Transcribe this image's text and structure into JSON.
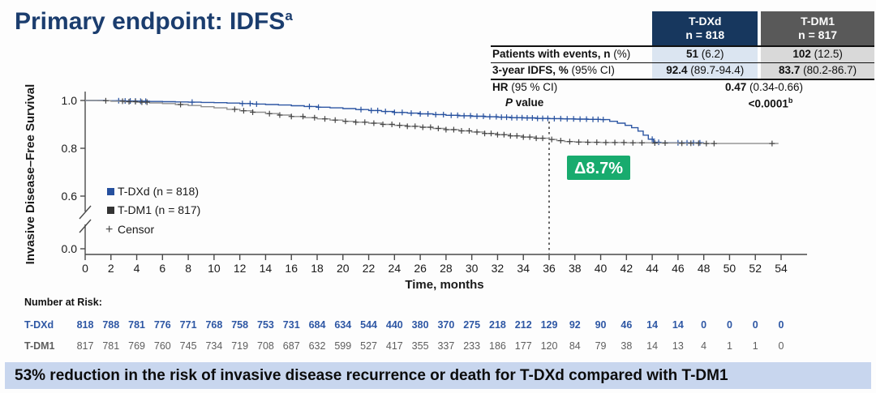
{
  "title": {
    "text": "Primary endpoint: IDFS",
    "superscript": "a"
  },
  "stats_table": {
    "columns": [
      {
        "name": "T-DXd",
        "n": "n = 818",
        "header_color": "#17375e"
      },
      {
        "name": "T-DM1",
        "n": "n = 817",
        "header_color": "#595959"
      }
    ],
    "rows": [
      {
        "label_bold": "Patients with events, n",
        "label_rest": " (%)",
        "tdxd_bold": "51",
        "tdxd_rest": " (6.2)",
        "tdm1_bold": "102",
        "tdm1_rest": " (12.5)"
      },
      {
        "label_bold": "3-year IDFS, %",
        "label_rest": " (95% CI)",
        "tdxd_bold": "92.4",
        "tdxd_rest": " (89.7-94.4)",
        "tdm1_bold": "83.7",
        "tdm1_rest": " (80.2-86.7)"
      }
    ],
    "hr_row": {
      "label_bold": "HR",
      "label_rest": " (95 % CI)",
      "value_bold": "0.47",
      "value_rest": " (0.34-0.66)"
    },
    "p_row": {
      "label_italic": "P",
      "label_rest": " value",
      "value_bold": "<0.0001",
      "superscript": "b"
    }
  },
  "chart_data": {
    "type": "line",
    "subtype": "kaplan-meier-step",
    "xlabel": "Time, months",
    "ylabel": "Invasive Disease–Free Survival",
    "xlim": [
      0,
      54
    ],
    "x_ticks": [
      0,
      2,
      4,
      6,
      8,
      10,
      12,
      14,
      16,
      18,
      20,
      22,
      24,
      26,
      28,
      30,
      32,
      34,
      36,
      38,
      40,
      42,
      44,
      46,
      48,
      50,
      52,
      54
    ],
    "y_ticks": [
      "1.0",
      "0.8",
      "0.6",
      "0.0"
    ],
    "y_axis_break_between": [
      "0.6",
      "0.0"
    ],
    "grid": false,
    "legend_position": "inside-left",
    "reference_line_month": 36,
    "annotation": {
      "text": "Δ8.7%",
      "color": "#18ab6e",
      "text_color": "#ffffff"
    },
    "series": [
      {
        "name": "T-DXd (n = 818)",
        "line_color": "#2e57a4",
        "marker_color": "#26509e",
        "points": [
          [
            0,
            1.0
          ],
          [
            1.5,
            0.999
          ],
          [
            3,
            0.998
          ],
          [
            4,
            0.997
          ],
          [
            5,
            0.996
          ],
          [
            6,
            0.995
          ],
          [
            7,
            0.994
          ],
          [
            8,
            0.993
          ],
          [
            9,
            0.992
          ],
          [
            10,
            0.991
          ],
          [
            11,
            0.989
          ],
          [
            12,
            0.987
          ],
          [
            13,
            0.985
          ],
          [
            14,
            0.983
          ],
          [
            15,
            0.981
          ],
          [
            16,
            0.978
          ],
          [
            17,
            0.975
          ],
          [
            18,
            0.972
          ],
          [
            19,
            0.969
          ],
          [
            20,
            0.966
          ],
          [
            21,
            0.962
          ],
          [
            22,
            0.958
          ],
          [
            23,
            0.954
          ],
          [
            24,
            0.95
          ],
          [
            25,
            0.947
          ],
          [
            26,
            0.944
          ],
          [
            27,
            0.941
          ],
          [
            28,
            0.938
          ],
          [
            29,
            0.936
          ],
          [
            30,
            0.934
          ],
          [
            31,
            0.932
          ],
          [
            32,
            0.93
          ],
          [
            33,
            0.928
          ],
          [
            34,
            0.927
          ],
          [
            35,
            0.925
          ],
          [
            36,
            0.924
          ],
          [
            37,
            0.923
          ],
          [
            38,
            0.922
          ],
          [
            39,
            0.921
          ],
          [
            40,
            0.92
          ],
          [
            40.7,
            0.913
          ],
          [
            41.3,
            0.905
          ],
          [
            41.9,
            0.896
          ],
          [
            42.4,
            0.886
          ],
          [
            42.9,
            0.872
          ],
          [
            43.3,
            0.855
          ],
          [
            43.7,
            0.838
          ],
          [
            44.1,
            0.825
          ],
          [
            44.6,
            0.823
          ],
          [
            48,
            0.823
          ]
        ],
        "censor_months": [
          2.6,
          3.1,
          3.5,
          3.9,
          4.3,
          4.7,
          8.3,
          12.2,
          12.8,
          13.3,
          17.4,
          18.1,
          21.4,
          22.2,
          22.7,
          23.3,
          24.0,
          24.6,
          25.3,
          26.0,
          26.6,
          27.2,
          27.8,
          28.4,
          28.9,
          29.4,
          29.9,
          30.4,
          30.9,
          31.4,
          31.9,
          32.3,
          32.7,
          33.1,
          33.5,
          33.9,
          34.3,
          34.7,
          35.1,
          35.5,
          35.9,
          36.4,
          36.9,
          37.4,
          37.9,
          38.4,
          38.9,
          39.4,
          39.8,
          40.2,
          44.0,
          44.5,
          46.0,
          46.7,
          47.2,
          47.7
        ]
      },
      {
        "name": "T-DM1 (n = 817)",
        "line_color": "#8f8f8f",
        "marker_color": "#454545",
        "points": [
          [
            0,
            1.0
          ],
          [
            1,
            0.999
          ],
          [
            2,
            0.997
          ],
          [
            3,
            0.995
          ],
          [
            4,
            0.993
          ],
          [
            5,
            0.99
          ],
          [
            6,
            0.987
          ],
          [
            7,
            0.983
          ],
          [
            8,
            0.979
          ],
          [
            9,
            0.974
          ],
          [
            10,
            0.969
          ],
          [
            11,
            0.963
          ],
          [
            12,
            0.957
          ],
          [
            13,
            0.951
          ],
          [
            14,
            0.945
          ],
          [
            15,
            0.939
          ],
          [
            16,
            0.933
          ],
          [
            17,
            0.928
          ],
          [
            18,
            0.923
          ],
          [
            19,
            0.918
          ],
          [
            20,
            0.913
          ],
          [
            21,
            0.909
          ],
          [
            22,
            0.905
          ],
          [
            23,
            0.9
          ],
          [
            24,
            0.896
          ],
          [
            25,
            0.892
          ],
          [
            26,
            0.888
          ],
          [
            27,
            0.883
          ],
          [
            28,
            0.878
          ],
          [
            29,
            0.873
          ],
          [
            30,
            0.868
          ],
          [
            31,
            0.862
          ],
          [
            32,
            0.857
          ],
          [
            33,
            0.852
          ],
          [
            34,
            0.847
          ],
          [
            35,
            0.842
          ],
          [
            36,
            0.837
          ],
          [
            36.6,
            0.832
          ],
          [
            37.2,
            0.828
          ],
          [
            38,
            0.826
          ],
          [
            39,
            0.825
          ],
          [
            40,
            0.824
          ],
          [
            42,
            0.823
          ],
          [
            44,
            0.822
          ],
          [
            46,
            0.821
          ],
          [
            48,
            0.82
          ],
          [
            53.8,
            0.82
          ]
        ],
        "censor_months": [
          1.6,
          2.9,
          3.4,
          3.9,
          4.4,
          4.8,
          7.4,
          11.6,
          12.3,
          13.0,
          14.3,
          15.1,
          16.0,
          16.9,
          17.8,
          18.6,
          19.4,
          20.2,
          21.0,
          21.7,
          22.4,
          23.1,
          23.8,
          24.4,
          25.0,
          25.6,
          26.2,
          26.8,
          27.4,
          28.0,
          28.6,
          29.2,
          29.8,
          30.4,
          31.0,
          31.5,
          32.0,
          32.5,
          33.0,
          33.5,
          34.0,
          34.5,
          35.0,
          35.5,
          36.2,
          36.9,
          37.6,
          38.3,
          39.0,
          39.7,
          40.4,
          41.1,
          41.8,
          42.5,
          43.2,
          44.2,
          45.0,
          46.3,
          47.0,
          47.6,
          48.2,
          48.8,
          53.3
        ]
      }
    ],
    "legend": [
      {
        "marker": "square",
        "color": "#26509e",
        "label": "T-DXd (n = 818)"
      },
      {
        "marker": "square",
        "color": "#333333",
        "label": "T-DM1 (n = 817)"
      },
      {
        "marker": "plus",
        "color": "#444444",
        "label": "Censor",
        "prefix": "+"
      }
    ]
  },
  "risk_table": {
    "heading": "Number at Risk:",
    "months": [
      0,
      2,
      4,
      6,
      8,
      10,
      12,
      14,
      16,
      18,
      20,
      22,
      24,
      26,
      28,
      30,
      32,
      34,
      36,
      38,
      40,
      42,
      44,
      46,
      48,
      50,
      52,
      54
    ],
    "rows": [
      {
        "label": "T-DXd",
        "color": "#2e57a4",
        "bold": true,
        "values": [
          818,
          788,
          781,
          776,
          771,
          768,
          758,
          753,
          731,
          684,
          634,
          544,
          440,
          380,
          370,
          275,
          218,
          212,
          129,
          92,
          90,
          46,
          14,
          14,
          0,
          0,
          0,
          0
        ]
      },
      {
        "label": "T-DM1",
        "color": "#5e5e5e",
        "bold": false,
        "values": [
          817,
          781,
          769,
          760,
          745,
          734,
          719,
          708,
          687,
          632,
          599,
          527,
          417,
          355,
          337,
          233,
          186,
          177,
          120,
          84,
          79,
          38,
          14,
          13,
          4,
          1,
          1,
          0
        ]
      }
    ]
  },
  "banner": {
    "text": "53% reduction in the risk of invasive disease recurrence or death for T-DXd compared with T-DM1"
  }
}
